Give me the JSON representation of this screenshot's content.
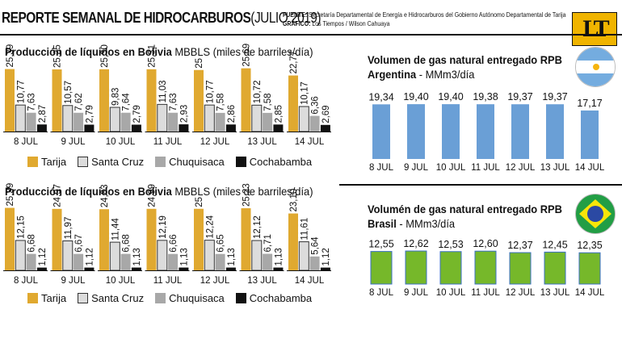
{
  "header": {
    "title_bold": "REPORTE SEMANAL DE HIDROCARBUROS",
    "title_light": "(JULIO 2019)",
    "source_label": "FUENTE:",
    "source_text": "Secretaría Departamental de Energía e Hidrocarburos del Gobierno Autónomo Departamental de Tarija",
    "graphic_label": "GRÁFICO:",
    "graphic_text": "Los Tiempos / Wilson Cahuaya",
    "logo_text": "LT"
  },
  "colors": {
    "tarija": "#e0a930",
    "santa_cruz": "#dcdcdc",
    "chuquisaca": "#a8a8a8",
    "cochabamba": "#111111",
    "gas_argentina": "#6a9fd6",
    "gas_brasil": "#76b82a"
  },
  "legend": {
    "tarija": "Tarija",
    "santa_cruz": "Santa Cruz",
    "chuquisaca": "Chuquisaca",
    "cochabamba": "Cochabamba"
  },
  "chart_data": [
    {
      "type": "bar",
      "title_bold": "Producción de líquidos en Bolivia",
      "title_light": "MBBLS (miles de barriles/día)",
      "categories": [
        "8 JUL",
        "9 JUL",
        "10 JUL",
        "11 JUL",
        "12 JUL",
        "13 JUL",
        "14 JUL"
      ],
      "series": [
        {
          "name": "Tarija",
          "values": [
            25.39,
            25.25,
            25.3,
            25.31,
            25,
            25.69,
            22.77
          ],
          "labels": [
            "25,39",
            "25,25",
            "25,30",
            "25,31",
            "25",
            "25,69",
            "22,77"
          ]
        },
        {
          "name": "Santa Cruz",
          "values": [
            10.77,
            10.57,
            9.83,
            11.03,
            10.77,
            10.72,
            10.17
          ],
          "labels": [
            "10,77",
            "10,57",
            "9,83",
            "11,03",
            "10,77",
            "10,72",
            "10,17"
          ]
        },
        {
          "name": "Chuquisaca",
          "values": [
            7.63,
            7.62,
            7.64,
            7.63,
            7.58,
            7.58,
            6.36
          ],
          "labels": [
            "7,63",
            "7,62",
            "7,64",
            "7,63",
            "7,58",
            "7,58",
            "6,36"
          ]
        },
        {
          "name": "Cochabamba",
          "values": [
            2.87,
            2.79,
            2.79,
            2.93,
            2.86,
            2.85,
            2.69
          ],
          "labels": [
            "2,87",
            "2,79",
            "2,79",
            "2,93",
            "2,86",
            "2,85",
            "2,69"
          ]
        }
      ],
      "legend_position": "bottom"
    },
    {
      "type": "bar",
      "title_bold": "Producción de líquidos en Bolivia",
      "title_light": "MBBLS (miles de barriles/día)",
      "categories": [
        "8 JUL",
        "9 JUL",
        "10 JUL",
        "11 JUL",
        "12 JUL",
        "13 JUL",
        "14 JUL"
      ],
      "series": [
        {
          "name": "Tarija",
          "values": [
            25.39,
            24.97,
            24.83,
            24.99,
            25,
            25.23,
            23.1
          ],
          "labels": [
            "25,39",
            "24,97",
            "24,83",
            "24,99",
            "25",
            "25,23",
            "23,10"
          ]
        },
        {
          "name": "Santa Cruz",
          "values": [
            12.15,
            11.97,
            11.44,
            12.19,
            12.24,
            12.12,
            11.61
          ],
          "labels": [
            "12,15",
            "11,97",
            "11,44",
            "12,19",
            "12,24",
            "12,12",
            "11,61"
          ]
        },
        {
          "name": "Chuquisaca",
          "values": [
            6.68,
            6.67,
            6.68,
            6.66,
            6.65,
            6.71,
            5.64
          ],
          "labels": [
            "6,68",
            "6,67",
            "6,68",
            "6,66",
            "6,65",
            "6,71",
            "5,64"
          ]
        },
        {
          "name": "Cochabamba",
          "values": [
            1.12,
            1.12,
            1.13,
            1.13,
            1.13,
            1.13,
            1.12
          ],
          "labels": [
            "1,12",
            "1,12",
            "1,13",
            "1,13",
            "1,13",
            "1,13",
            "1,12"
          ]
        }
      ],
      "legend_position": "bottom"
    },
    {
      "type": "bar",
      "title_bold_1": "Volumen de gas natural entregado RPB",
      "title_bold_2": "Argentina",
      "title_light": "- MMm3/día",
      "categories": [
        "8 JUL",
        "9 JUL",
        "10 JUL",
        "11 JUL",
        "12 JUL",
        "13 JUL",
        "14 JUL"
      ],
      "values": [
        19.34,
        19.4,
        19.4,
        19.38,
        19.37,
        19.37,
        17.17
      ],
      "labels": [
        "19,34",
        "19,40",
        "19,40",
        "19,38",
        "19,37",
        "19,37",
        "17,17"
      ]
    },
    {
      "type": "bar",
      "title_bold_1": "Volumén de gas natural entregado RPB",
      "title_bold_2": "Brasil",
      "title_light": "- MMm3/día",
      "categories": [
        "8 JUL",
        "9 JUL",
        "10 JUL",
        "11 JUL",
        "12 JUL",
        "13 JUL",
        "14 JUL"
      ],
      "values": [
        12.55,
        12.62,
        12.53,
        12.6,
        12.37,
        12.45,
        12.35
      ],
      "labels": [
        "12,55",
        "12,62",
        "12,53",
        "12,60",
        "12,37",
        "12,45",
        "12,35"
      ]
    }
  ]
}
